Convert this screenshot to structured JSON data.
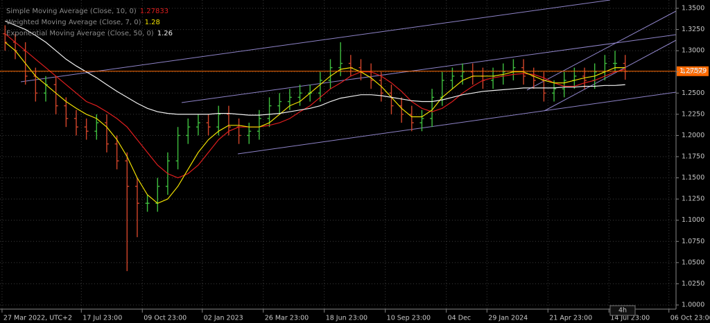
{
  "chart_data": {
    "type": "ohlc",
    "xlim": [
      -0.5,
      66.0
    ],
    "ylim": [
      1.0,
      1.35
    ],
    "xticks": [
      {
        "value": -0.3,
        "label": "27 Mar 2022, UTC+2"
      },
      {
        "value": 7.5,
        "label": "17 Jul 23:00"
      },
      {
        "value": 13.5,
        "label": "09 Oct 23:00"
      },
      {
        "value": 19.4,
        "label": "02 Jan 2023"
      },
      {
        "value": 25.4,
        "label": "26 Mar 23:00"
      },
      {
        "value": 31.4,
        "label": "18 Jun 23:00"
      },
      {
        "value": 37.4,
        "label": "10 Sep 23:00"
      },
      {
        "value": 43.4,
        "label": "04 Dec"
      },
      {
        "value": 47.4,
        "label": "29 Jan 2024"
      },
      {
        "value": 53.4,
        "label": "21 Apr 23:00"
      },
      {
        "value": 59.4,
        "label": "14 Jul 23:00"
      },
      {
        "value": 65.3,
        "label": "06 Oct 23:00"
      }
    ],
    "yticks": [
      {
        "value": 1.0,
        "label": "1.0000"
      },
      {
        "value": 1.025,
        "label": "1.0250"
      },
      {
        "value": 1.05,
        "label": "1.0500"
      },
      {
        "value": 1.075,
        "label": "1.0750"
      },
      {
        "value": 1.1,
        "label": "1.1000"
      },
      {
        "value": 1.125,
        "label": "1.1250"
      },
      {
        "value": 1.15,
        "label": "1.1500"
      },
      {
        "value": 1.175,
        "label": "1.1750"
      },
      {
        "value": 1.2,
        "label": "1.2000"
      },
      {
        "value": 1.225,
        "label": "1.2250"
      },
      {
        "value": 1.25,
        "label": "1.2500"
      },
      {
        "value": 1.275,
        "label": "1.2750"
      },
      {
        "value": 1.3,
        "label": "1.3000"
      },
      {
        "value": 1.325,
        "label": "1.3250"
      },
      {
        "value": 1.35,
        "label": "1.3500"
      }
    ],
    "grid": true,
    "up_color": "#3fbf3f",
    "down_color": "#d2452a",
    "open": [
      1.32,
      1.31,
      1.3,
      1.27,
      1.25,
      1.26,
      1.235,
      1.22,
      1.21,
      1.205,
      1.215,
      1.19,
      1.17,
      1.14,
      1.12,
      1.12,
      1.14,
      1.17,
      1.2,
      1.21,
      1.215,
      1.21,
      1.225,
      1.21,
      1.2,
      1.205,
      1.22,
      1.235,
      1.24,
      1.245,
      1.25,
      1.25,
      1.265,
      1.28,
      1.285,
      1.28,
      1.275,
      1.265,
      1.25,
      1.235,
      1.225,
      1.215,
      1.22,
      1.245,
      1.265,
      1.27,
      1.275,
      1.27,
      1.265,
      1.27,
      1.275,
      1.28,
      1.27,
      1.265,
      1.25,
      1.255,
      1.265,
      1.27,
      1.265,
      1.275,
      1.285,
      1.285
    ],
    "high": [
      1.33,
      1.32,
      1.31,
      1.28,
      1.27,
      1.27,
      1.245,
      1.23,
      1.22,
      1.225,
      1.225,
      1.2,
      1.18,
      1.15,
      1.13,
      1.15,
      1.18,
      1.21,
      1.22,
      1.225,
      1.225,
      1.235,
      1.235,
      1.22,
      1.215,
      1.23,
      1.245,
      1.25,
      1.255,
      1.26,
      1.26,
      1.275,
      1.29,
      1.31,
      1.295,
      1.29,
      1.285,
      1.275,
      1.26,
      1.245,
      1.235,
      1.23,
      1.255,
      1.275,
      1.28,
      1.285,
      1.285,
      1.28,
      1.28,
      1.285,
      1.29,
      1.29,
      1.28,
      1.275,
      1.265,
      1.275,
      1.28,
      1.28,
      1.285,
      1.295,
      1.3,
      1.295
    ],
    "low": [
      1.3,
      1.29,
      1.26,
      1.24,
      1.24,
      1.225,
      1.21,
      1.2,
      1.195,
      1.195,
      1.18,
      1.16,
      1.04,
      1.08,
      1.11,
      1.11,
      1.13,
      1.16,
      1.19,
      1.2,
      1.2,
      1.2,
      1.2,
      1.19,
      1.19,
      1.195,
      1.21,
      1.225,
      1.23,
      1.235,
      1.24,
      1.24,
      1.255,
      1.27,
      1.27,
      1.265,
      1.255,
      1.24,
      1.225,
      1.215,
      1.205,
      1.205,
      1.21,
      1.235,
      1.255,
      1.26,
      1.26,
      1.255,
      1.255,
      1.26,
      1.265,
      1.26,
      1.255,
      1.24,
      1.24,
      1.245,
      1.255,
      1.255,
      1.255,
      1.265,
      1.275,
      1.2658
    ],
    "close": [
      1.31,
      1.3,
      1.27,
      1.25,
      1.26,
      1.235,
      1.22,
      1.21,
      1.205,
      1.215,
      1.19,
      1.17,
      1.14,
      1.12,
      1.12,
      1.14,
      1.17,
      1.2,
      1.21,
      1.215,
      1.21,
      1.225,
      1.21,
      1.2,
      1.205,
      1.22,
      1.235,
      1.24,
      1.245,
      1.25,
      1.25,
      1.265,
      1.28,
      1.285,
      1.28,
      1.275,
      1.265,
      1.25,
      1.235,
      1.225,
      1.215,
      1.22,
      1.245,
      1.265,
      1.27,
      1.275,
      1.27,
      1.265,
      1.27,
      1.275,
      1.28,
      1.27,
      1.265,
      1.25,
      1.255,
      1.265,
      1.27,
      1.265,
      1.275,
      1.285,
      1.285,
      1.2758
    ],
    "series": [
      {
        "name": "Simple Moving Average (Close, 10, 0)",
        "color": "#e01e1e",
        "current_value": 1.27833,
        "values": [
          1.32,
          1.31,
          1.3,
          1.29,
          1.28,
          1.27,
          1.26,
          1.25,
          1.24,
          1.235,
          1.228,
          1.22,
          1.21,
          1.195,
          1.18,
          1.165,
          1.155,
          1.15,
          1.155,
          1.165,
          1.18,
          1.195,
          1.205,
          1.21,
          1.21,
          1.21,
          1.212,
          1.215,
          1.22,
          1.228,
          1.235,
          1.245,
          1.255,
          1.262,
          1.27,
          1.275,
          1.275,
          1.27,
          1.262,
          1.252,
          1.24,
          1.232,
          1.228,
          1.232,
          1.24,
          1.25,
          1.258,
          1.265,
          1.268,
          1.27,
          1.272,
          1.273,
          1.272,
          1.268,
          1.262,
          1.258,
          1.258,
          1.262,
          1.265,
          1.27,
          1.275,
          1.278
        ]
      },
      {
        "name": "Weighted Moving Average (Close, 7, 0)",
        "color": "#f0e000",
        "current_value": 1.28,
        "values": [
          1.31,
          1.3,
          1.285,
          1.27,
          1.26,
          1.25,
          1.24,
          1.232,
          1.225,
          1.22,
          1.21,
          1.195,
          1.175,
          1.15,
          1.13,
          1.12,
          1.125,
          1.14,
          1.16,
          1.18,
          1.195,
          1.205,
          1.212,
          1.212,
          1.21,
          1.21,
          1.215,
          1.225,
          1.235,
          1.24,
          1.25,
          1.26,
          1.27,
          1.278,
          1.28,
          1.275,
          1.268,
          1.258,
          1.245,
          1.232,
          1.222,
          1.222,
          1.23,
          1.245,
          1.255,
          1.265,
          1.27,
          1.27,
          1.27,
          1.272,
          1.275,
          1.275,
          1.27,
          1.265,
          1.262,
          1.262,
          1.265,
          1.268,
          1.27,
          1.275,
          1.28,
          1.28
        ]
      },
      {
        "name": "Exponential Moving Average (Close, 50, 0)",
        "color": "#f2f2f2",
        "current_value": 1.26,
        "values": [
          1.335,
          1.33,
          1.325,
          1.318,
          1.31,
          1.3,
          1.29,
          1.282,
          1.275,
          1.268,
          1.26,
          1.252,
          1.245,
          1.238,
          1.232,
          1.228,
          1.226,
          1.225,
          1.225,
          1.225,
          1.225,
          1.226,
          1.226,
          1.225,
          1.224,
          1.224,
          1.225,
          1.226,
          1.228,
          1.23,
          1.232,
          1.235,
          1.24,
          1.244,
          1.246,
          1.248,
          1.248,
          1.247,
          1.245,
          1.243,
          1.241,
          1.24,
          1.24,
          1.242,
          1.245,
          1.248,
          1.25,
          1.252,
          1.253,
          1.254,
          1.255,
          1.256,
          1.256,
          1.256,
          1.256,
          1.257,
          1.257,
          1.258,
          1.258,
          1.259,
          1.259,
          1.26
        ]
      }
    ],
    "price_line": {
      "value": 1.27579,
      "color": "#ff6a00"
    },
    "timeframe": "4h"
  }
}
